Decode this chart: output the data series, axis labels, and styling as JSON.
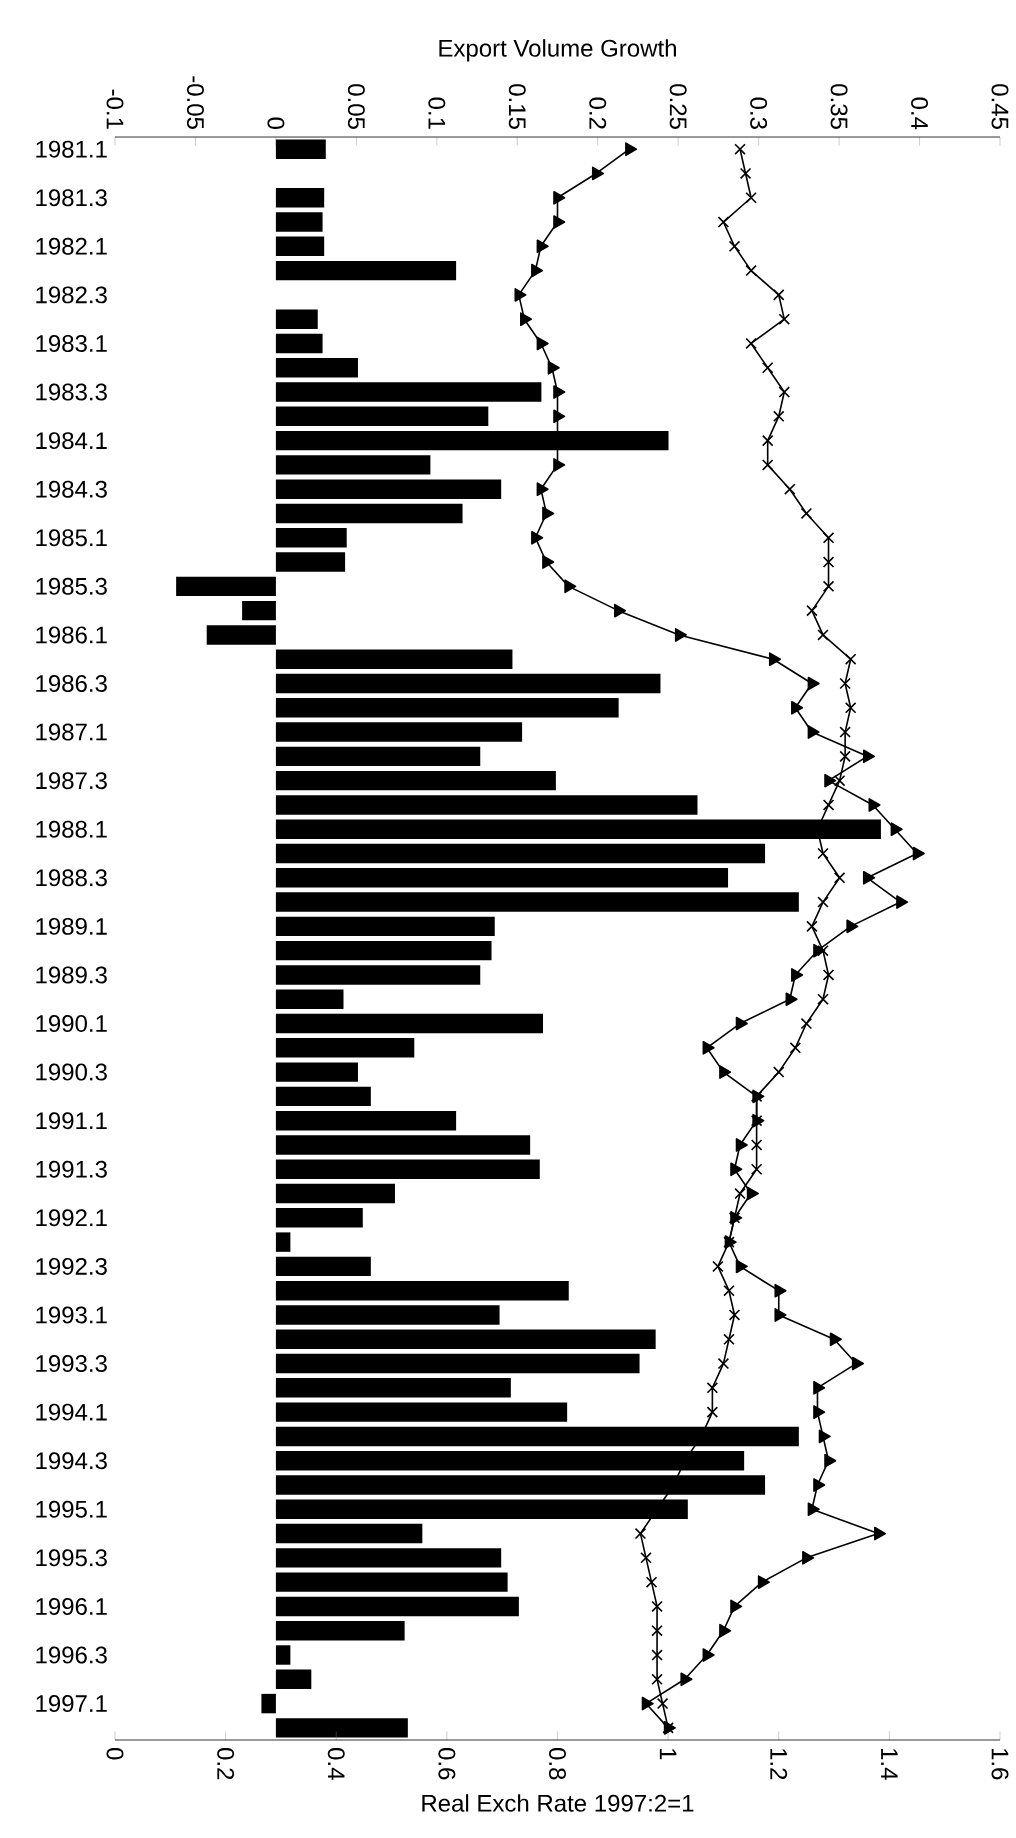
{
  "chart_data": {
    "type": "bar",
    "orientation": "horizontal",
    "xlabel": "Real Exch Rate 1997:2=1",
    "x2label": "Export Volume Growth",
    "categories": [
      "1981.1",
      null,
      "1981.3",
      null,
      "1982.1",
      null,
      "1982.3",
      null,
      "1983.1",
      null,
      "1983.3",
      null,
      "1984.1",
      null,
      "1984.3",
      null,
      "1985.1",
      null,
      "1985.3",
      null,
      "1986.1",
      null,
      "1986.3",
      null,
      "1987.1",
      null,
      "1987.3",
      null,
      "1988.1",
      null,
      "1988.3",
      null,
      "1989.1",
      null,
      "1989.3",
      null,
      "1990.1",
      null,
      "1990.3",
      null,
      "1991.1",
      null,
      "1991.3",
      null,
      "1992.1",
      null,
      "1992.3",
      null,
      "1993.1",
      null,
      "1993.3",
      null,
      "1994.1",
      null,
      "1994.3",
      null,
      "1995.1",
      null,
      "1995.3",
      null,
      "1996.1",
      null,
      "1996.3",
      null,
      "1997.1",
      null
    ],
    "xlim": [
      0,
      1.6
    ],
    "xticks": [
      0,
      0.2,
      0.4,
      0.6,
      0.8,
      1,
      1.2,
      1.4,
      1.6
    ],
    "x2lim": [
      -0.1,
      0.45
    ],
    "x2ticks": [
      -0.1,
      -0.05,
      0,
      0.05,
      0.1,
      0.15,
      0.2,
      0.25,
      0.3,
      0.35,
      0.4,
      0.45
    ],
    "series": [
      {
        "axis": "x2",
        "color": "#000000",
        "values": [
          0.031,
          null,
          0.03,
          0.029,
          0.03,
          0.112,
          null,
          0.026,
          0.029,
          0.051,
          0.165,
          0.132,
          0.244,
          0.096,
          0.14,
          0.116,
          0.044,
          0.043,
          -0.062,
          -0.021,
          -0.043,
          0.147,
          0.239,
          0.213,
          0.153,
          0.127,
          0.174,
          0.262,
          0.376,
          0.304,
          0.281,
          0.325,
          0.136,
          0.134,
          0.127,
          0.042,
          0.166,
          0.086,
          0.051,
          0.059,
          0.112,
          0.158,
          0.164,
          0.074,
          0.054,
          0.009,
          0.059,
          0.182,
          0.139,
          0.236,
          0.226,
          0.146,
          0.181,
          0.325,
          0.291,
          0.304,
          0.256,
          0.091,
          0.14,
          0.144,
          0.151,
          0.08,
          0.009,
          0.022,
          -0.009,
          0.082
        ]
      },
      {
        "type": "line",
        "color": "#000000",
        "marker": "triangle",
        "values": [
          0.93,
          0.87,
          0.8,
          0.8,
          0.77,
          0.76,
          0.73,
          0.74,
          0.77,
          0.79,
          0.8,
          0.8,
          0.8,
          0.8,
          0.77,
          0.78,
          0.76,
          0.78,
          0.82,
          0.91,
          1.02,
          1.19,
          1.26,
          1.23,
          1.26,
          1.36,
          1.29,
          1.37,
          1.41,
          1.45,
          1.36,
          1.42,
          1.33,
          1.27,
          1.23,
          1.22,
          1.13,
          1.07,
          1.1,
          1.16,
          1.16,
          1.13,
          1.12,
          1.15,
          1.12,
          1.11,
          1.13,
          1.2,
          1.2,
          1.3,
          1.34,
          1.27,
          1.27,
          1.28,
          1.29,
          1.27,
          1.26,
          1.38,
          1.25,
          1.17,
          1.12,
          1.1,
          1.07,
          1.03,
          0.96,
          1.0
        ]
      },
      {
        "type": "line",
        "color": "#000000",
        "marker": "cross",
        "values": [
          1.13,
          1.14,
          1.15,
          1.1,
          1.12,
          1.15,
          1.2,
          1.21,
          1.15,
          1.18,
          1.21,
          1.2,
          1.18,
          1.18,
          1.22,
          1.25,
          1.29,
          1.29,
          1.29,
          1.26,
          1.28,
          1.33,
          1.32,
          1.33,
          1.32,
          1.32,
          1.31,
          1.29,
          1.27,
          1.28,
          1.31,
          1.28,
          1.26,
          1.28,
          1.29,
          1.28,
          1.25,
          1.23,
          1.2,
          1.16,
          1.16,
          1.16,
          1.16,
          1.13,
          1.12,
          1.11,
          1.09,
          1.11,
          1.12,
          1.11,
          1.1,
          1.08,
          1.08,
          1.06,
          1.03,
          1.01,
          0.98,
          0.95,
          0.96,
          0.97,
          0.98,
          0.98,
          0.98,
          0.98,
          0.99,
          1.0
        ]
      }
    ]
  }
}
